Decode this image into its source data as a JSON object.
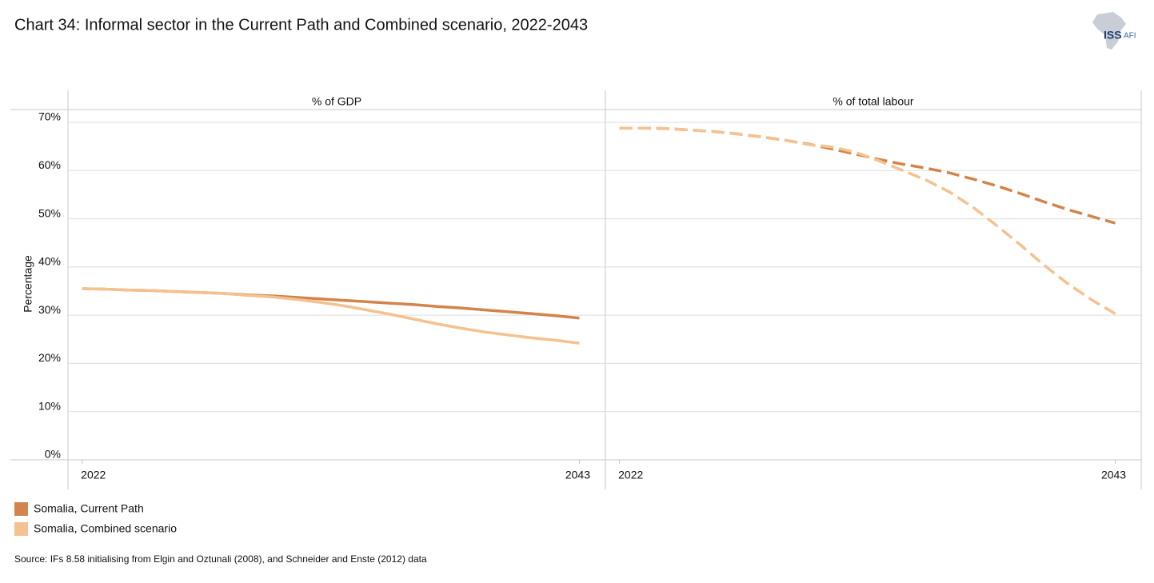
{
  "title": "Chart 34: Informal sector in the Current Path and Combined scenario, 2022-2043",
  "source": "Source: IFs 8.58 initialising from Elgin and Oztunali (2008), and Schneider and Enste (2012) data",
  "logo": {
    "main": "ISS",
    "sub": "AFI"
  },
  "chart_data": [
    {
      "type": "line",
      "title": "% of GDP",
      "ylabel": "Percentage",
      "dashed": false,
      "grid": true,
      "x": [
        2022,
        2023,
        2024,
        2025,
        2026,
        2027,
        2028,
        2029,
        2030,
        2031,
        2032,
        2033,
        2034,
        2035,
        2036,
        2037,
        2038,
        2039,
        2040,
        2041,
        2042,
        2043
      ],
      "xlim": [
        2021.4,
        2044.1
      ],
      "xticks": [
        2022,
        2043
      ],
      "ylim": [
        0,
        70
      ],
      "yticks": [
        {
          "value": 0,
          "label": "0%"
        },
        {
          "value": 10,
          "label": "10%"
        },
        {
          "value": 20,
          "label": "20%"
        },
        {
          "value": 30,
          "label": "30%"
        },
        {
          "value": 40,
          "label": "40%"
        },
        {
          "value": 50,
          "label": "50%"
        },
        {
          "value": 60,
          "label": "60%"
        },
        {
          "value": 70,
          "label": "70%"
        }
      ],
      "series": [
        {
          "name": "Somalia, Current Path",
          "color": "#d2844a",
          "values": [
            35.5,
            35.4,
            35.2,
            35.1,
            34.9,
            34.7,
            34.5,
            34.2,
            34.0,
            33.7,
            33.4,
            33.1,
            32.8,
            32.5,
            32.2,
            31.8,
            31.5,
            31.1,
            30.7,
            30.3,
            29.9,
            29.4
          ]
        },
        {
          "name": "Somalia, Combined scenario",
          "color": "#f5c18f",
          "values": [
            35.5,
            35.4,
            35.2,
            35.1,
            34.9,
            34.7,
            34.5,
            34.1,
            33.8,
            33.3,
            32.7,
            32.0,
            31.1,
            30.2,
            29.2,
            28.2,
            27.3,
            26.5,
            25.9,
            25.3,
            24.8,
            24.2
          ]
        }
      ]
    },
    {
      "type": "line",
      "title": "% of total labour",
      "dashed": true,
      "grid": true,
      "x": [
        2022,
        2023,
        2024,
        2025,
        2026,
        2027,
        2028,
        2029,
        2030,
        2031,
        2032,
        2033,
        2034,
        2035,
        2036,
        2037,
        2038,
        2039,
        2040,
        2041,
        2042,
        2043
      ],
      "xlim": [
        2021.4,
        2044.1
      ],
      "xticks": [
        2022,
        2043
      ],
      "ylim": [
        0,
        70
      ],
      "yticks": [
        0,
        10,
        20,
        30,
        40,
        50,
        60,
        70
      ],
      "series": [
        {
          "name": "Somalia, Current Path",
          "color": "#d2844a",
          "values": [
            68.8,
            68.8,
            68.7,
            68.4,
            68.1,
            67.6,
            67.0,
            66.3,
            65.5,
            64.5,
            63.4,
            62.3,
            61.3,
            60.5,
            59.5,
            58.2,
            56.8,
            55.2,
            53.5,
            51.9,
            50.5,
            49.1
          ]
        },
        {
          "name": "Somalia, Combined scenario",
          "color": "#f5c18f",
          "values": [
            68.8,
            68.8,
            68.7,
            68.4,
            68.1,
            67.6,
            67.0,
            66.3,
            65.4,
            64.9,
            63.8,
            62.0,
            60.0,
            58.0,
            55.5,
            52.3,
            48.5,
            44.5,
            40.3,
            36.5,
            33.2,
            30.3
          ]
        }
      ]
    }
  ]
}
